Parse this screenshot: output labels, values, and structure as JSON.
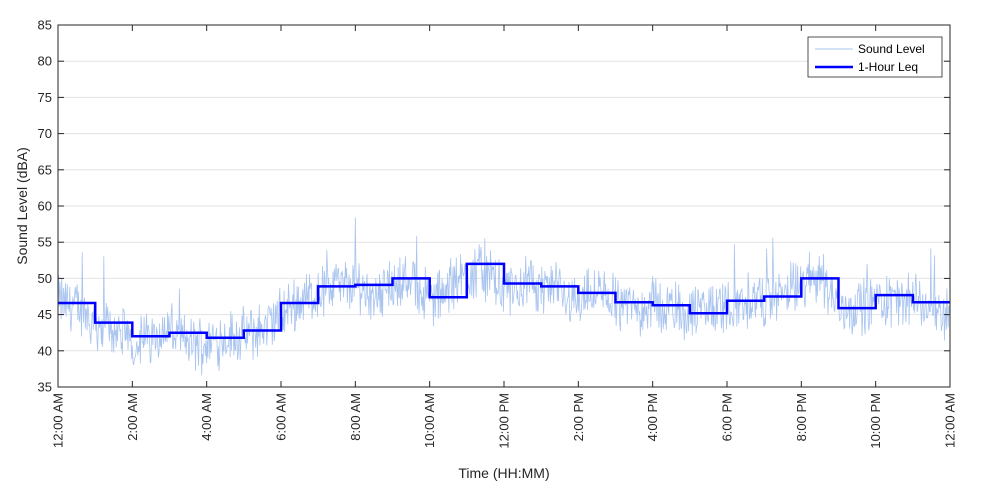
{
  "chart_data": {
    "type": "line",
    "title": "",
    "xlabel": "Time (HH:MM)",
    "ylabel": "Sound Level (dBA)",
    "ylim": [
      35,
      85
    ],
    "yticks": [
      35,
      40,
      45,
      50,
      55,
      60,
      65,
      70,
      75,
      80,
      85
    ],
    "xlim_hours": [
      0,
      24
    ],
    "xticks_hours": [
      0,
      2,
      4,
      6,
      8,
      10,
      12,
      14,
      16,
      18,
      20,
      22,
      24
    ],
    "xtick_labels": [
      "12:00 AM",
      "2:00 AM",
      "4:00 AM",
      "6:00 AM",
      "8:00 AM",
      "10:00 AM",
      "12:00 PM",
      "2:00 PM",
      "4:00 PM",
      "6:00 PM",
      "8:00 PM",
      "10:00 PM",
      "12:00 AM"
    ],
    "grid": "horizontal",
    "legend_position": "top-right",
    "colors": {
      "sound_level": "#a9c4ef",
      "leq": "#0000ff",
      "grid": "#e3e3e3",
      "axis": "#262626"
    },
    "series": [
      {
        "name": "Sound Level",
        "style": "thin-line",
        "x_hours": [
          0,
          0.5,
          1,
          1.5,
          2,
          2.5,
          3,
          3.5,
          4,
          4.5,
          5,
          5.5,
          6,
          6.5,
          7,
          7.5,
          8,
          8.5,
          9,
          9.5,
          10,
          10.5,
          11,
          11.5,
          12,
          12.5,
          13,
          13.5,
          14,
          14.5,
          15,
          15.5,
          16,
          16.5,
          17,
          17.5,
          18,
          18.5,
          19,
          19.5,
          20,
          20.5,
          21,
          21.5,
          22,
          22.5,
          23,
          23.5,
          24
        ],
        "values": [
          47,
          46,
          44,
          43,
          41,
          42,
          43,
          41,
          41,
          42,
          42,
          43,
          45,
          47,
          48,
          49,
          49,
          48,
          49,
          50,
          47,
          48,
          51,
          51,
          48,
          49,
          49,
          48,
          47,
          48,
          47,
          46,
          46,
          46,
          45,
          46,
          46,
          47,
          47,
          48,
          49,
          51,
          46,
          46,
          47,
          47,
          47,
          46,
          45
        ]
      },
      {
        "name": "1-Hour Leq",
        "style": "step",
        "hours": [
          0,
          1,
          2,
          3,
          4,
          5,
          6,
          7,
          8,
          9,
          10,
          11,
          12,
          13,
          14,
          15,
          16,
          17,
          18,
          19,
          20,
          21,
          22,
          23
        ],
        "values": [
          46.6,
          43.9,
          42.0,
          42.5,
          41.8,
          42.8,
          46.6,
          48.9,
          49.1,
          50.0,
          47.4,
          52.0,
          49.3,
          48.9,
          48.0,
          46.7,
          46.3,
          45.2,
          46.9,
          47.5,
          50.0,
          45.9,
          47.7,
          46.7
        ]
      }
    ]
  }
}
